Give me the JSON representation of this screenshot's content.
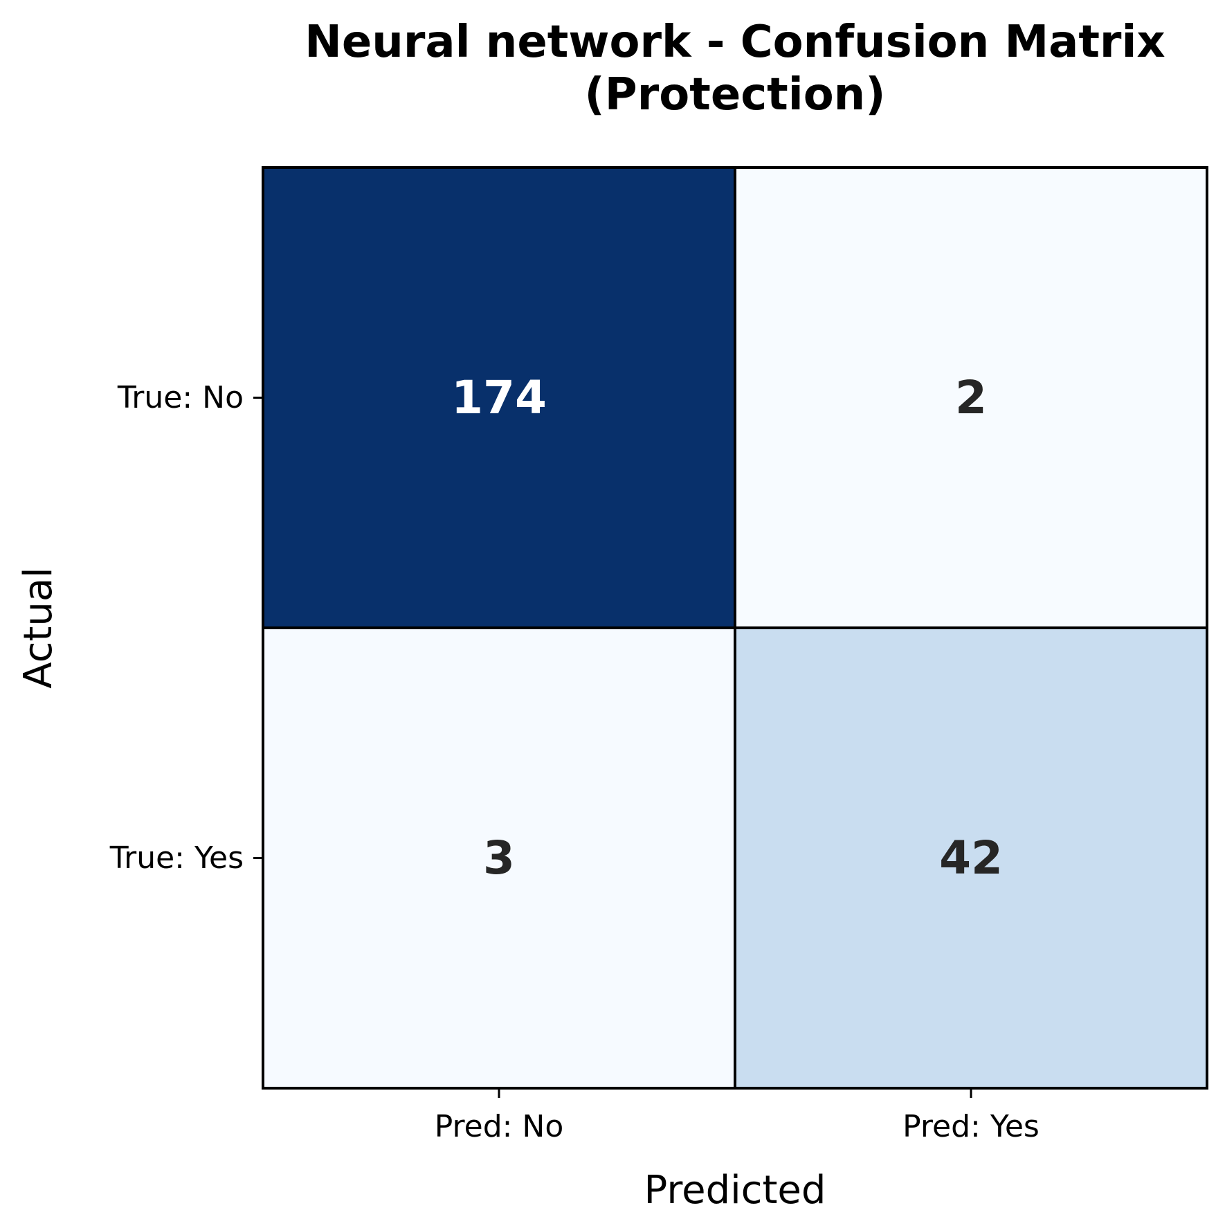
{
  "chart_data": {
    "type": "heatmap",
    "title": [
      "Neural network - Confusion Matrix",
      "(Protection)"
    ],
    "xlabel": "Predicted",
    "ylabel": "Actual",
    "x_categories": [
      "Pred: No",
      "Pred: Yes"
    ],
    "y_categories": [
      "True: No",
      "True: Yes"
    ],
    "values": [
      [
        174,
        2
      ],
      [
        3,
        42
      ]
    ],
    "colormap": "Blues",
    "colors": {
      "high": "#08306b",
      "low": "#f7fbff",
      "text_dark": "#262626",
      "text_light": "#ffffff",
      "border": "#000000"
    },
    "colorbar": false
  }
}
